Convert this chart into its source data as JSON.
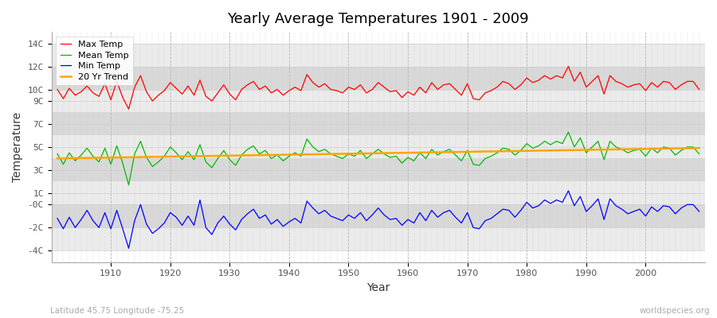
{
  "title": "Yearly Average Temperatures 1901 - 2009",
  "xlabel": "Year",
  "ylabel": "Temperature",
  "subtitle": "Latitude 45.75 Longitude -75.25",
  "watermark": "worldspecies.org",
  "start_year": 1901,
  "end_year": 2009,
  "ylim": [
    -5,
    15
  ],
  "ytick_positions": [
    -4,
    -2,
    0,
    1,
    3,
    5,
    7,
    9,
    10,
    12,
    14
  ],
  "ytick_labels": [
    "-4C",
    "-2C",
    "-0C",
    "1C",
    "3C",
    "5C",
    "7C",
    "9C",
    "10C",
    "12C",
    "14C"
  ],
  "band_edges": [
    -4,
    -2,
    0,
    2,
    4,
    6,
    8,
    10,
    12,
    14
  ],
  "max_temp": [
    10.0,
    9.2,
    10.1,
    9.5,
    9.8,
    10.3,
    9.7,
    9.4,
    10.5,
    9.1,
    10.7,
    9.3,
    8.3,
    10.2,
    11.2,
    9.8,
    9.0,
    9.5,
    9.9,
    10.6,
    10.1,
    9.6,
    10.3,
    9.5,
    10.8,
    9.4,
    9.0,
    9.7,
    10.4,
    9.6,
    9.1,
    10.0,
    10.4,
    10.7,
    10.0,
    10.3,
    9.7,
    10.0,
    9.5,
    9.9,
    10.2,
    9.9,
    11.3,
    10.6,
    10.2,
    10.5,
    10.0,
    9.9,
    9.7,
    10.2,
    10.0,
    10.4,
    9.7,
    10.0,
    10.6,
    10.2,
    9.8,
    9.9,
    9.3,
    9.8,
    9.5,
    10.2,
    9.7,
    10.6,
    10.0,
    10.4,
    10.5,
    10.0,
    9.5,
    10.5,
    9.2,
    9.1,
    9.7,
    9.9,
    10.2,
    10.7,
    10.5,
    10.0,
    10.4,
    11.0,
    10.6,
    10.8,
    11.2,
    10.9,
    11.2,
    11.0,
    12.0,
    10.7,
    11.5,
    10.2,
    10.7,
    11.2,
    9.6,
    11.2,
    10.7,
    10.5,
    10.2,
    10.4,
    10.5,
    9.9,
    10.6,
    10.2,
    10.7,
    10.6,
    10.0,
    10.4,
    10.7,
    10.7,
    10.0
  ],
  "mean_temp": [
    4.4,
    3.5,
    4.5,
    3.8,
    4.3,
    4.9,
    4.2,
    3.7,
    4.9,
    3.5,
    5.1,
    3.6,
    1.7,
    4.4,
    5.5,
    4.1,
    3.3,
    3.7,
    4.2,
    5.0,
    4.5,
    3.9,
    4.6,
    3.9,
    5.2,
    3.7,
    3.2,
    4.0,
    4.7,
    3.9,
    3.4,
    4.3,
    4.8,
    5.1,
    4.4,
    4.7,
    4.0,
    4.3,
    3.8,
    4.2,
    4.5,
    4.2,
    5.7,
    5.0,
    4.6,
    4.8,
    4.4,
    4.2,
    4.0,
    4.4,
    4.2,
    4.7,
    4.0,
    4.4,
    4.8,
    4.4,
    4.1,
    4.2,
    3.6,
    4.1,
    3.8,
    4.5,
    4.0,
    4.8,
    4.3,
    4.6,
    4.8,
    4.3,
    3.8,
    4.7,
    3.5,
    3.4,
    4.0,
    4.2,
    4.5,
    4.9,
    4.8,
    4.3,
    4.7,
    5.3,
    4.9,
    5.1,
    5.5,
    5.2,
    5.5,
    5.3,
    6.3,
    5.0,
    5.8,
    4.5,
    5.0,
    5.5,
    3.9,
    5.5,
    5.0,
    4.8,
    4.5,
    4.7,
    4.8,
    4.2,
    4.9,
    4.5,
    5.0,
    4.9,
    4.3,
    4.7,
    5.0,
    5.0,
    4.4
  ],
  "min_temp": [
    -1.2,
    -2.1,
    -1.1,
    -2.0,
    -1.3,
    -0.5,
    -1.4,
    -2.0,
    -0.7,
    -2.1,
    -0.5,
    -2.1,
    -3.8,
    -1.4,
    0.0,
    -1.7,
    -2.5,
    -2.1,
    -1.6,
    -0.7,
    -1.1,
    -1.8,
    -1.0,
    -1.8,
    0.4,
    -2.0,
    -2.6,
    -1.6,
    -1.0,
    -1.7,
    -2.2,
    -1.3,
    -0.8,
    -0.4,
    -1.2,
    -0.9,
    -1.7,
    -1.3,
    -1.9,
    -1.5,
    -1.2,
    -1.6,
    0.3,
    -0.3,
    -0.8,
    -0.5,
    -1.0,
    -1.2,
    -1.4,
    -0.9,
    -1.2,
    -0.7,
    -1.4,
    -0.9,
    -0.3,
    -0.9,
    -1.3,
    -1.2,
    -1.8,
    -1.3,
    -1.6,
    -0.7,
    -1.4,
    -0.5,
    -1.1,
    -0.7,
    -0.5,
    -1.1,
    -1.6,
    -0.7,
    -2.0,
    -2.1,
    -1.4,
    -1.2,
    -0.8,
    -0.4,
    -0.5,
    -1.1,
    -0.5,
    0.2,
    -0.3,
    -0.1,
    0.4,
    0.1,
    0.4,
    0.2,
    1.2,
    -0.1,
    0.7,
    -0.6,
    -0.1,
    0.5,
    -1.3,
    0.5,
    -0.1,
    -0.4,
    -0.8,
    -0.6,
    -0.4,
    -1.0,
    -0.2,
    -0.6,
    -0.1,
    -0.2,
    -0.8,
    -0.3,
    0.0,
    0.0,
    -0.6
  ],
  "colors": {
    "max_temp": "#ff0000",
    "mean_temp": "#00bb00",
    "min_temp": "#0000ff",
    "trend": "#ffa500",
    "bg_light": "#ebebeb",
    "bg_dark": "#d8d8d8",
    "grid_v": "#cccccc",
    "title": "#000000"
  },
  "legend": {
    "max_label": "Max Temp",
    "mean_label": "Mean Temp",
    "min_label": "Min Temp",
    "trend_label": "20 Yr Trend"
  }
}
